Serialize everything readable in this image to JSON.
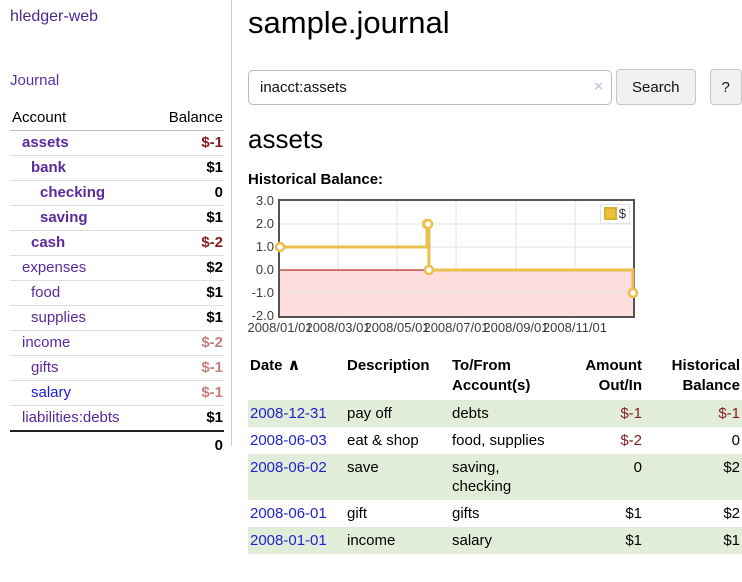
{
  "colors": {
    "link_purple": "#5a2a9c",
    "link_blue": "#2222cc",
    "negative_dark_red": "#861a1c",
    "negative_soft_red": "#c47f7f",
    "row_stripe_green": "#e1edd9",
    "chart_line_gold": "#e8c04a",
    "chart_negative_fill": "#ffdddd",
    "chart_zero_line": "#990000"
  },
  "sidebar": {
    "brand": "hledger-web",
    "journal_label": "Journal",
    "accounts_table": {
      "headers": {
        "account": "Account",
        "balance": "Balance"
      },
      "rows": [
        {
          "name": "assets",
          "balance": "$-1",
          "level": 0,
          "bold": true,
          "balance_style": "neg-strong"
        },
        {
          "name": "bank",
          "balance": "$1",
          "level": 1,
          "bold": true,
          "balance_style": "pos"
        },
        {
          "name": "checking",
          "balance": "0",
          "level": 2,
          "bold": true,
          "balance_style": "pos"
        },
        {
          "name": "saving",
          "balance": "$1",
          "level": 2,
          "bold": true,
          "balance_style": "pos"
        },
        {
          "name": "cash",
          "balance": "$-2",
          "level": 1,
          "bold": true,
          "balance_style": "neg-strong"
        },
        {
          "name": "expenses",
          "balance": "$2",
          "level": 0,
          "bold": false,
          "balance_style": "pos"
        },
        {
          "name": "food",
          "balance": "$1",
          "level": 1,
          "bold": false,
          "balance_style": "pos"
        },
        {
          "name": "supplies",
          "balance": "$1",
          "level": 1,
          "bold": false,
          "balance_style": "pos"
        },
        {
          "name": "income",
          "balance": "$-2",
          "level": 0,
          "bold": false,
          "balance_style": "neg-soft"
        },
        {
          "name": "gifts",
          "balance": "$-1",
          "level": 1,
          "bold": false,
          "balance_style": "neg-soft"
        },
        {
          "name": "salary",
          "balance": "$-1",
          "level": 1,
          "bold": false,
          "balance_style": "neg-soft",
          "link_style": "blue"
        },
        {
          "name": "liabilities:debts",
          "balance": "$1",
          "level": 0,
          "bold": false,
          "balance_style": "pos"
        }
      ],
      "total": "0"
    }
  },
  "main": {
    "title": "sample.journal",
    "search": {
      "value": "inacct:assets",
      "clear_icon": "×",
      "button_label": "Search",
      "help_label": "?"
    },
    "account_heading": "assets"
  },
  "chart_data": {
    "type": "line",
    "title": "Historical Balance:",
    "step": true,
    "series": [
      {
        "name": "$",
        "points": [
          [
            "2008-01-01",
            1
          ],
          [
            "2008-06-01",
            2
          ],
          [
            "2008-06-02",
            2
          ],
          [
            "2008-06-03",
            0
          ],
          [
            "2008-12-31",
            -1
          ]
        ]
      }
    ],
    "x_range": [
      "2008-01-01",
      "2008-12-31"
    ],
    "x_tick_labels": [
      "2008/01/01",
      "2008/03/01",
      "2008/05/01",
      "2008/07/01",
      "2008/09/01",
      "2008/11/01"
    ],
    "y_ticks": [
      3.0,
      2.0,
      1.0,
      0.0,
      -1.0,
      -2.0
    ],
    "ylim": [
      -2,
      3
    ],
    "grid": true,
    "legend": {
      "label": "$",
      "position": "top-right"
    },
    "negative_region_highlighted": true
  },
  "register": {
    "headers": {
      "date": "Date",
      "sort_icon": "∧",
      "description": "Description",
      "accounts": "To/From Account(s)",
      "amount": "Amount Out/In",
      "balance": "Historical Balance"
    },
    "rows": [
      {
        "date": "2008-12-31",
        "description": "pay off",
        "accounts": "debts",
        "amount": "$-1",
        "amount_neg": true,
        "balance": "$-1",
        "balance_neg": true
      },
      {
        "date": "2008-06-03",
        "description": "eat & shop",
        "accounts": "food, supplies",
        "amount": "$-2",
        "amount_neg": true,
        "balance": "0",
        "balance_neg": false
      },
      {
        "date": "2008-06-02",
        "description": "save",
        "accounts": "saving, checking",
        "amount": "0",
        "amount_neg": false,
        "balance": "$2",
        "balance_neg": false
      },
      {
        "date": "2008-06-01",
        "description": "gift",
        "accounts": "gifts",
        "amount": "$1",
        "amount_neg": false,
        "balance": "$2",
        "balance_neg": false
      },
      {
        "date": "2008-01-01",
        "description": "income",
        "accounts": "salary",
        "amount": "$1",
        "amount_neg": false,
        "balance": "$1",
        "balance_neg": false
      }
    ]
  }
}
